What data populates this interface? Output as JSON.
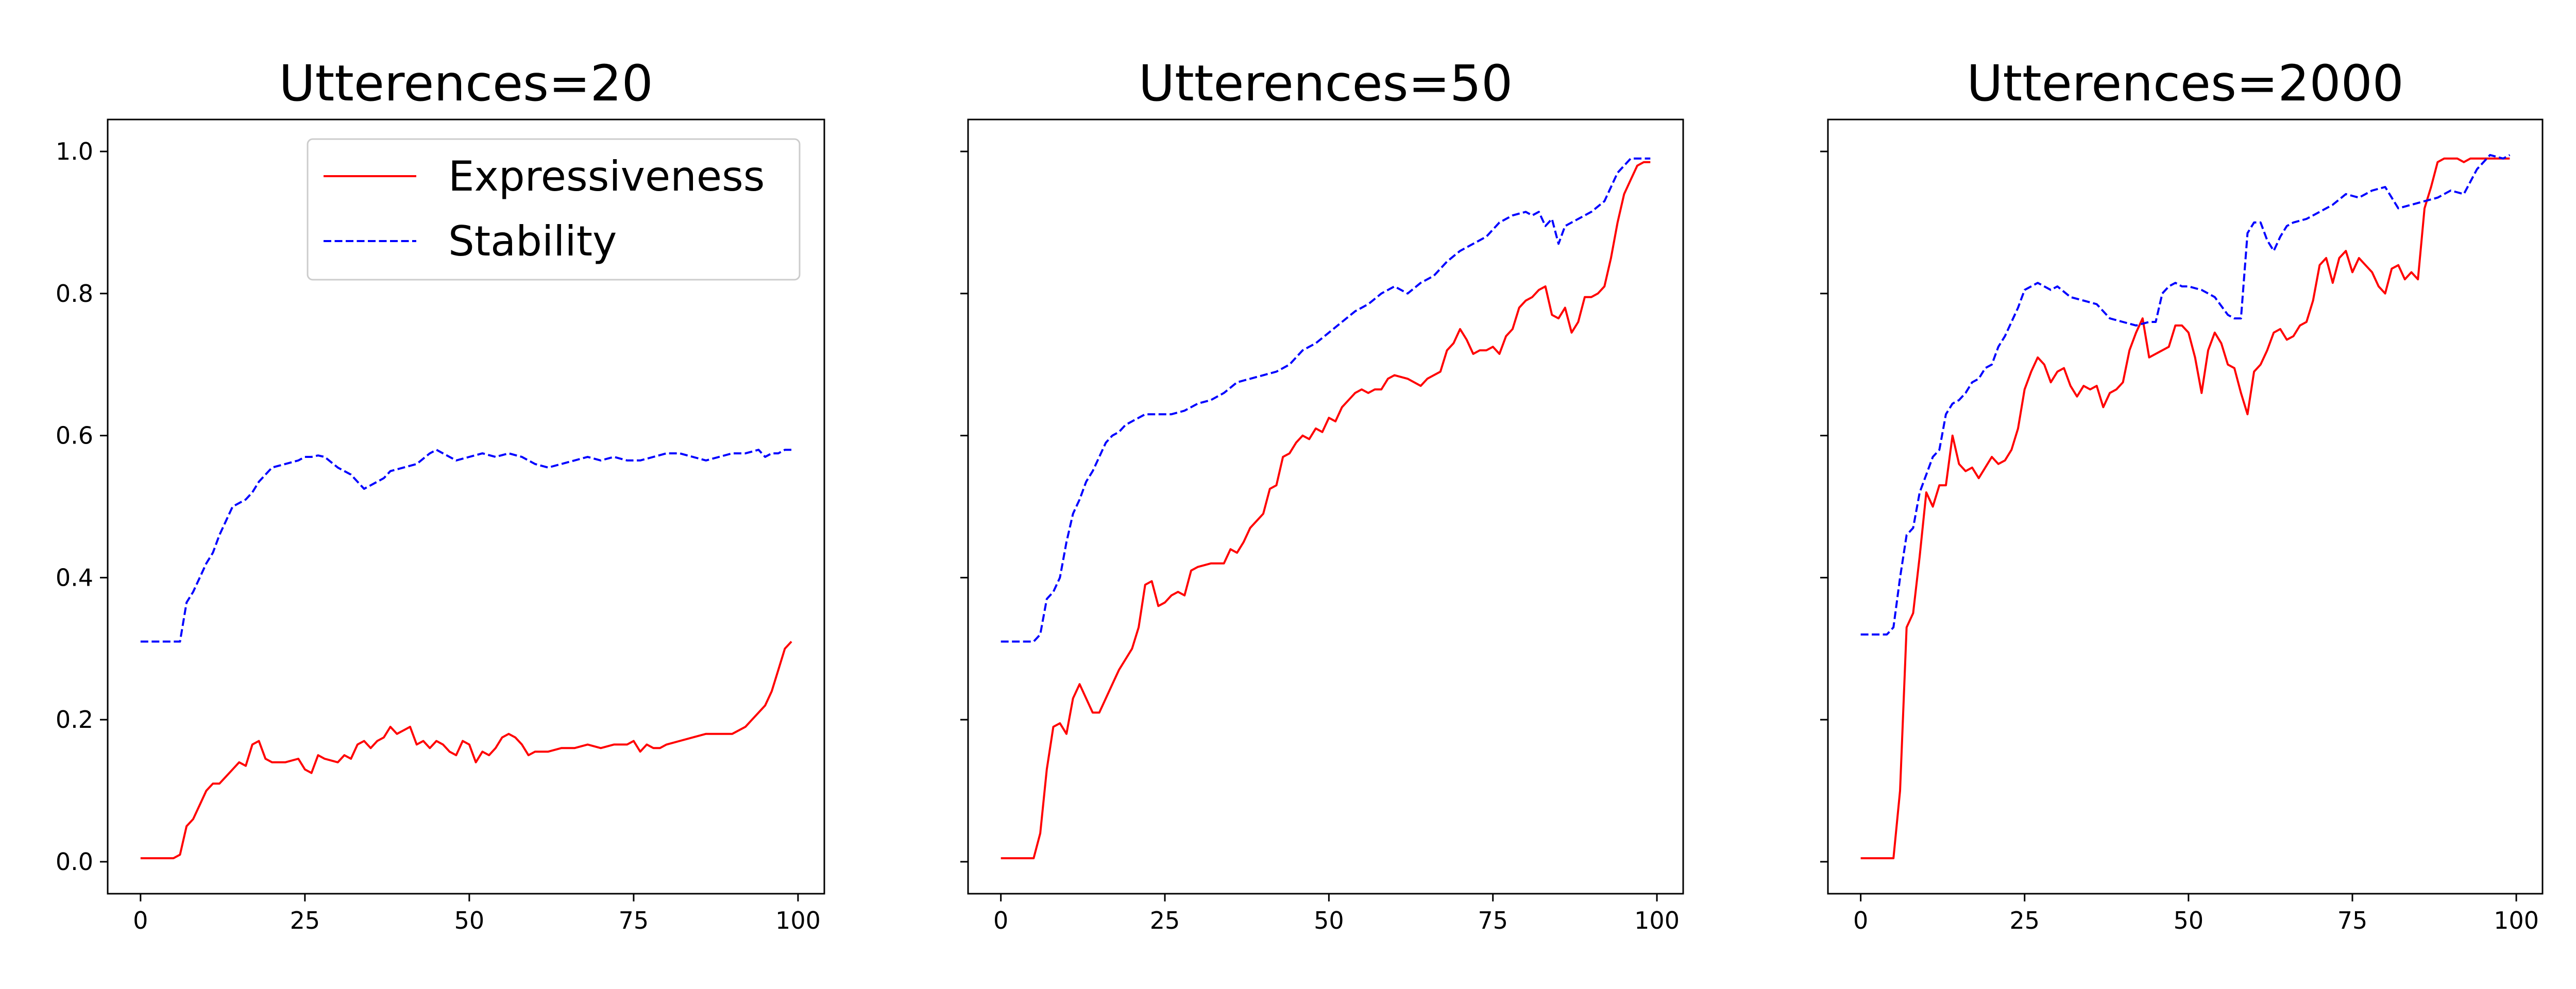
{
  "colors": {
    "expressiveness": "#ff0000",
    "stability": "#0000ff"
  },
  "legend": {
    "placement": "upper-right of first panel",
    "items": [
      {
        "label": "Expressiveness",
        "color": "#ff0000",
        "style": "solid"
      },
      {
        "label": "Stability",
        "color": "#0000ff",
        "style": "dashed"
      }
    ]
  },
  "chart_data": [
    {
      "type": "line",
      "title": "Utterences=20",
      "xlim": [
        -5,
        104
      ],
      "ylim": [
        -0.045,
        1.045
      ],
      "xticks": [
        "0",
        "25",
        "50",
        "75",
        "100"
      ],
      "yticks": [
        "0.0",
        "0.2",
        "0.4",
        "0.6",
        "0.8",
        "1.0"
      ],
      "grid": false,
      "series": [
        {
          "name": "Expressiveness",
          "style": "solid",
          "x": [
            0,
            2,
            4,
            5,
            6,
            7,
            8,
            9,
            10,
            11,
            12,
            13,
            14,
            15,
            16,
            17,
            18,
            19,
            20,
            22,
            24,
            25,
            26,
            27,
            28,
            30,
            31,
            32,
            33,
            34,
            35,
            36,
            37,
            38,
            39,
            40,
            41,
            42,
            43,
            44,
            45,
            46,
            47,
            48,
            49,
            50,
            51,
            52,
            53,
            54,
            55,
            56,
            57,
            58,
            59,
            60,
            62,
            64,
            66,
            68,
            70,
            72,
            74,
            75,
            76,
            77,
            78,
            79,
            80,
            82,
            84,
            86,
            88,
            90,
            92,
            93,
            94,
            95,
            96,
            97,
            98,
            99
          ],
          "y": [
            0.005,
            0.005,
            0.005,
            0.005,
            0.01,
            0.05,
            0.06,
            0.08,
            0.1,
            0.11,
            0.11,
            0.12,
            0.13,
            0.14,
            0.135,
            0.165,
            0.17,
            0.145,
            0.14,
            0.14,
            0.145,
            0.13,
            0.125,
            0.15,
            0.145,
            0.14,
            0.15,
            0.145,
            0.165,
            0.17,
            0.16,
            0.17,
            0.175,
            0.19,
            0.18,
            0.185,
            0.19,
            0.165,
            0.17,
            0.16,
            0.17,
            0.165,
            0.155,
            0.15,
            0.17,
            0.165,
            0.14,
            0.155,
            0.15,
            0.16,
            0.175,
            0.18,
            0.175,
            0.165,
            0.15,
            0.155,
            0.155,
            0.16,
            0.16,
            0.165,
            0.16,
            0.165,
            0.165,
            0.17,
            0.155,
            0.165,
            0.16,
            0.16,
            0.165,
            0.17,
            0.175,
            0.18,
            0.18,
            0.18,
            0.19,
            0.2,
            0.21,
            0.22,
            0.24,
            0.27,
            0.3,
            0.31
          ]
        },
        {
          "name": "Stability",
          "style": "dashed",
          "x": [
            0,
            2,
            4,
            5,
            6,
            7,
            8,
            9,
            10,
            11,
            12,
            13,
            14,
            15,
            16,
            17,
            18,
            19,
            20,
            22,
            24,
            25,
            26,
            27,
            28,
            30,
            32,
            33,
            34,
            35,
            36,
            37,
            38,
            40,
            42,
            44,
            45,
            46,
            47,
            48,
            50,
            52,
            54,
            56,
            58,
            60,
            62,
            64,
            66,
            68,
            70,
            72,
            74,
            76,
            78,
            80,
            82,
            84,
            86,
            88,
            90,
            92,
            94,
            95,
            96,
            97,
            98,
            99
          ],
          "y": [
            0.31,
            0.31,
            0.31,
            0.31,
            0.31,
            0.365,
            0.38,
            0.4,
            0.42,
            0.435,
            0.46,
            0.48,
            0.5,
            0.505,
            0.51,
            0.52,
            0.535,
            0.545,
            0.555,
            0.56,
            0.565,
            0.57,
            0.57,
            0.572,
            0.57,
            0.555,
            0.545,
            0.535,
            0.525,
            0.53,
            0.535,
            0.54,
            0.55,
            0.555,
            0.56,
            0.575,
            0.58,
            0.575,
            0.57,
            0.565,
            0.57,
            0.575,
            0.57,
            0.575,
            0.57,
            0.56,
            0.555,
            0.56,
            0.565,
            0.57,
            0.565,
            0.57,
            0.565,
            0.565,
            0.57,
            0.575,
            0.575,
            0.57,
            0.565,
            0.57,
            0.575,
            0.575,
            0.58,
            0.57,
            0.575,
            0.575,
            0.58,
            0.58
          ]
        }
      ]
    },
    {
      "type": "line",
      "title": "Utterences=50",
      "xlim": [
        -5,
        104
      ],
      "ylim": [
        -0.045,
        1.045
      ],
      "xticks": [
        "0",
        "25",
        "50",
        "75",
        "100"
      ],
      "yticks": [
        "0.0",
        "0.2",
        "0.4",
        "0.6",
        "0.8",
        "1.0"
      ],
      "grid": false,
      "series": [
        {
          "name": "Expressiveness",
          "style": "solid",
          "x": [
            0,
            2,
            4,
            5,
            6,
            7,
            8,
            9,
            10,
            11,
            12,
            13,
            14,
            15,
            16,
            17,
            18,
            19,
            20,
            21,
            22,
            23,
            24,
            25,
            26,
            27,
            28,
            29,
            30,
            32,
            34,
            35,
            36,
            37,
            38,
            39,
            40,
            41,
            42,
            43,
            44,
            45,
            46,
            47,
            48,
            49,
            50,
            51,
            52,
            53,
            54,
            55,
            56,
            57,
            58,
            59,
            60,
            62,
            64,
            65,
            66,
            67,
            68,
            69,
            70,
            71,
            72,
            73,
            74,
            75,
            76,
            77,
            78,
            79,
            80,
            81,
            82,
            83,
            84,
            85,
            86,
            87,
            88,
            89,
            90,
            91,
            92,
            93,
            94,
            95,
            96,
            97,
            98,
            99
          ],
          "y": [
            0.005,
            0.005,
            0.005,
            0.005,
            0.04,
            0.13,
            0.19,
            0.195,
            0.18,
            0.23,
            0.25,
            0.23,
            0.21,
            0.21,
            0.23,
            0.25,
            0.27,
            0.285,
            0.3,
            0.33,
            0.39,
            0.395,
            0.36,
            0.365,
            0.375,
            0.38,
            0.375,
            0.41,
            0.415,
            0.42,
            0.42,
            0.44,
            0.435,
            0.45,
            0.47,
            0.48,
            0.49,
            0.525,
            0.53,
            0.57,
            0.575,
            0.59,
            0.6,
            0.595,
            0.61,
            0.605,
            0.625,
            0.62,
            0.64,
            0.65,
            0.66,
            0.665,
            0.66,
            0.665,
            0.665,
            0.68,
            0.685,
            0.68,
            0.67,
            0.68,
            0.685,
            0.69,
            0.72,
            0.73,
            0.75,
            0.735,
            0.715,
            0.72,
            0.72,
            0.725,
            0.715,
            0.74,
            0.75,
            0.78,
            0.79,
            0.795,
            0.805,
            0.81,
            0.77,
            0.765,
            0.78,
            0.745,
            0.76,
            0.795,
            0.795,
            0.8,
            0.81,
            0.85,
            0.9,
            0.94,
            0.96,
            0.98,
            0.985,
            0.985
          ]
        },
        {
          "name": "Stability",
          "style": "dashed",
          "x": [
            0,
            2,
            4,
            5,
            6,
            7,
            8,
            9,
            10,
            11,
            12,
            13,
            14,
            15,
            16,
            17,
            18,
            19,
            20,
            21,
            22,
            24,
            26,
            28,
            30,
            32,
            34,
            36,
            38,
            40,
            42,
            44,
            46,
            48,
            50,
            52,
            54,
            56,
            58,
            60,
            62,
            64,
            66,
            68,
            70,
            72,
            74,
            76,
            78,
            80,
            81,
            82,
            83,
            84,
            85,
            86,
            88,
            90,
            92,
            94,
            95,
            96,
            97,
            98,
            99
          ],
          "y": [
            0.31,
            0.31,
            0.31,
            0.31,
            0.32,
            0.37,
            0.38,
            0.4,
            0.45,
            0.49,
            0.51,
            0.535,
            0.55,
            0.57,
            0.59,
            0.6,
            0.605,
            0.615,
            0.62,
            0.625,
            0.63,
            0.63,
            0.63,
            0.635,
            0.645,
            0.65,
            0.66,
            0.675,
            0.68,
            0.685,
            0.69,
            0.7,
            0.72,
            0.73,
            0.745,
            0.76,
            0.775,
            0.785,
            0.8,
            0.81,
            0.8,
            0.815,
            0.825,
            0.845,
            0.86,
            0.87,
            0.88,
            0.9,
            0.91,
            0.915,
            0.91,
            0.915,
            0.895,
            0.905,
            0.87,
            0.895,
            0.905,
            0.915,
            0.93,
            0.97,
            0.98,
            0.99,
            0.99,
            0.99,
            0.99
          ]
        }
      ]
    },
    {
      "type": "line",
      "title": "Utterences=2000",
      "xlim": [
        -5,
        104
      ],
      "ylim": [
        -0.045,
        1.045
      ],
      "xticks": [
        "0",
        "25",
        "50",
        "75",
        "100"
      ],
      "yticks": [
        "0.0",
        "0.2",
        "0.4",
        "0.6",
        "0.8",
        "1.0"
      ],
      "grid": false,
      "series": [
        {
          "name": "Expressiveness",
          "style": "solid",
          "x": [
            0,
            2,
            4,
            5,
            6,
            7,
            8,
            9,
            10,
            11,
            12,
            13,
            14,
            15,
            16,
            17,
            18,
            19,
            20,
            21,
            22,
            23,
            24,
            25,
            26,
            27,
            28,
            29,
            30,
            31,
            32,
            33,
            34,
            35,
            36,
            37,
            38,
            39,
            40,
            41,
            42,
            43,
            44,
            45,
            46,
            47,
            48,
            49,
            50,
            51,
            52,
            53,
            54,
            55,
            56,
            57,
            58,
            59,
            60,
            61,
            62,
            63,
            64,
            65,
            66,
            67,
            68,
            69,
            70,
            71,
            72,
            73,
            74,
            75,
            76,
            77,
            78,
            79,
            80,
            81,
            82,
            83,
            84,
            85,
            86,
            87,
            88,
            89,
            90,
            91,
            92,
            93,
            94,
            95,
            96,
            97,
            98,
            99
          ],
          "y": [
            0.005,
            0.005,
            0.005,
            0.005,
            0.1,
            0.33,
            0.35,
            0.43,
            0.52,
            0.5,
            0.53,
            0.53,
            0.6,
            0.56,
            0.55,
            0.555,
            0.54,
            0.555,
            0.57,
            0.56,
            0.565,
            0.58,
            0.61,
            0.665,
            0.69,
            0.71,
            0.7,
            0.675,
            0.69,
            0.695,
            0.67,
            0.655,
            0.67,
            0.665,
            0.67,
            0.64,
            0.66,
            0.665,
            0.675,
            0.72,
            0.745,
            0.765,
            0.71,
            0.715,
            0.72,
            0.725,
            0.755,
            0.755,
            0.745,
            0.71,
            0.66,
            0.72,
            0.745,
            0.73,
            0.7,
            0.695,
            0.66,
            0.63,
            0.69,
            0.7,
            0.72,
            0.745,
            0.75,
            0.735,
            0.74,
            0.755,
            0.76,
            0.79,
            0.84,
            0.85,
            0.815,
            0.85,
            0.86,
            0.83,
            0.85,
            0.84,
            0.83,
            0.81,
            0.8,
            0.835,
            0.84,
            0.82,
            0.83,
            0.82,
            0.92,
            0.95,
            0.985,
            0.99,
            0.99,
            0.99,
            0.985,
            0.99,
            0.99,
            0.99,
            0.99,
            0.99,
            0.99,
            0.99
          ]
        },
        {
          "name": "Stability",
          "style": "dashed",
          "x": [
            0,
            2,
            4,
            5,
            6,
            7,
            8,
            9,
            10,
            11,
            12,
            13,
            14,
            15,
            16,
            17,
            18,
            19,
            20,
            21,
            22,
            23,
            24,
            25,
            26,
            27,
            28,
            29,
            30,
            32,
            34,
            36,
            38,
            40,
            42,
            44,
            45,
            46,
            47,
            48,
            49,
            50,
            52,
            54,
            56,
            57,
            58,
            59,
            60,
            61,
            62,
            63,
            64,
            65,
            66,
            68,
            70,
            72,
            74,
            76,
            78,
            80,
            82,
            84,
            86,
            88,
            90,
            92,
            94,
            96,
            98,
            99
          ],
          "y": [
            0.32,
            0.32,
            0.32,
            0.33,
            0.4,
            0.46,
            0.47,
            0.52,
            0.545,
            0.57,
            0.58,
            0.63,
            0.645,
            0.65,
            0.66,
            0.675,
            0.68,
            0.695,
            0.7,
            0.725,
            0.74,
            0.76,
            0.78,
            0.805,
            0.81,
            0.815,
            0.81,
            0.805,
            0.81,
            0.795,
            0.79,
            0.785,
            0.765,
            0.76,
            0.755,
            0.76,
            0.76,
            0.8,
            0.81,
            0.815,
            0.81,
            0.81,
            0.805,
            0.795,
            0.77,
            0.765,
            0.765,
            0.885,
            0.9,
            0.9,
            0.875,
            0.86,
            0.88,
            0.895,
            0.9,
            0.905,
            0.915,
            0.925,
            0.94,
            0.935,
            0.945,
            0.95,
            0.92,
            0.925,
            0.93,
            0.935,
            0.945,
            0.94,
            0.975,
            0.995,
            0.99,
            0.995
          ]
        }
      ]
    }
  ]
}
